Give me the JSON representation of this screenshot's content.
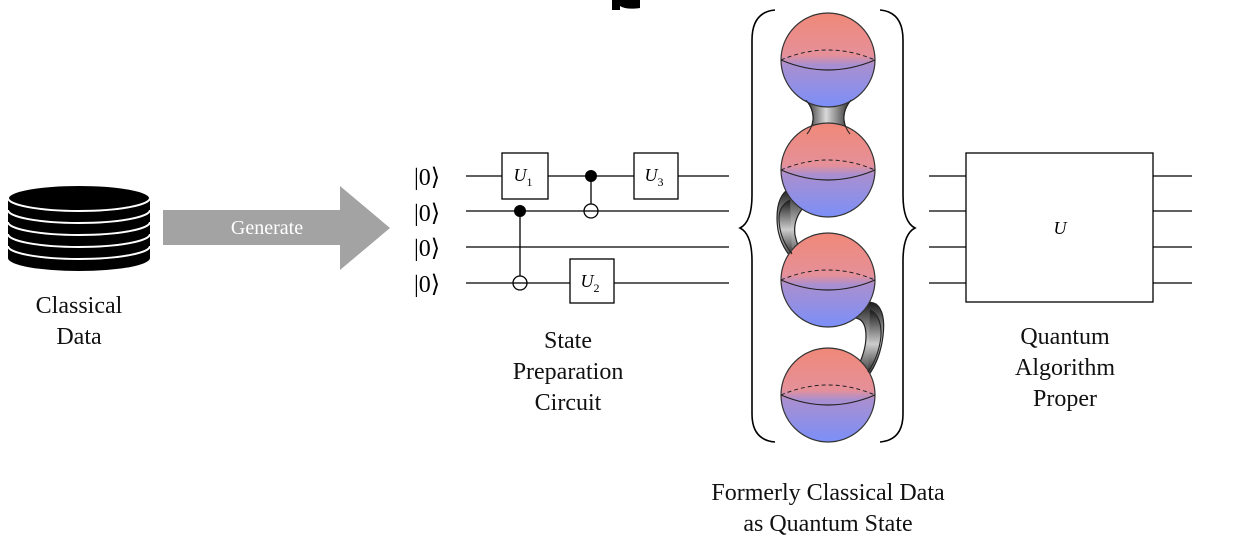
{
  "classical_data": {
    "label_line1": "Classical",
    "label_line2": "Data"
  },
  "arrow": {
    "label": "Generate"
  },
  "circuit": {
    "ket_labels": [
      "|0⟩",
      "|0⟩",
      "|0⟩",
      "|0⟩"
    ],
    "gates": {
      "u1": {
        "base": "U",
        "sub": "1"
      },
      "u2": {
        "base": "U",
        "sub": "2"
      },
      "u3": {
        "base": "U",
        "sub": "3"
      }
    },
    "caption_line1": "State",
    "caption_line2": "Preparation",
    "caption_line3": "Circuit"
  },
  "quantum_state": {
    "caption_line1": "Formerly Classical Data",
    "caption_line2": "as Quantum State"
  },
  "algorithm": {
    "box_label": "U",
    "caption_line1": "Quantum",
    "caption_line2": "Algorithm",
    "caption_line3": "Proper"
  },
  "colors": {
    "sphere_top": "#f08878",
    "sphere_bottom": "#7b8ff8",
    "arrow_gray": "#a3a3a3",
    "link_dark": "#222222"
  }
}
